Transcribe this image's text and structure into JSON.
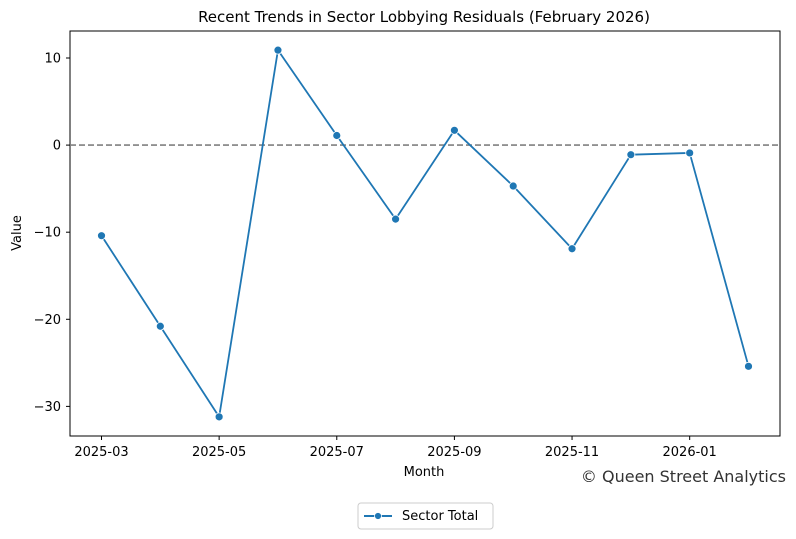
{
  "chart_data": {
    "type": "line",
    "title": "Recent Trends in Sector Lobbying Residuals (February 2026)",
    "xlabel": "Month",
    "ylabel": "Value",
    "x": [
      "2025-03",
      "2025-04",
      "2025-05",
      "2025-06",
      "2025-07",
      "2025-08",
      "2025-09",
      "2025-10",
      "2025-11",
      "2025-12",
      "2026-01",
      "2026-02"
    ],
    "series": [
      {
        "name": "Sector Total",
        "color": "#1f77b4",
        "values": [
          -10.4,
          -20.8,
          -31.2,
          10.9,
          1.1,
          -8.5,
          1.7,
          -4.7,
          -11.9,
          -1.1,
          -0.9,
          -25.4
        ]
      }
    ],
    "xticks": [
      "2025-03",
      "2025-05",
      "2025-07",
      "2025-09",
      "2025-11",
      "2026-01"
    ],
    "yticks": [
      10,
      0,
      -10,
      -20,
      -30
    ],
    "ytick_labels": [
      "10",
      "0",
      "−10",
      "−20",
      "−30"
    ],
    "ylim": [
      -33.4,
      13.1
    ],
    "reference_line": {
      "y": 0,
      "style": "dashed",
      "color": "#808080"
    },
    "legend": {
      "placement": "bottom-center",
      "label": "Sector Total"
    },
    "watermark": "© Queen Street Analytics",
    "grid": false
  }
}
